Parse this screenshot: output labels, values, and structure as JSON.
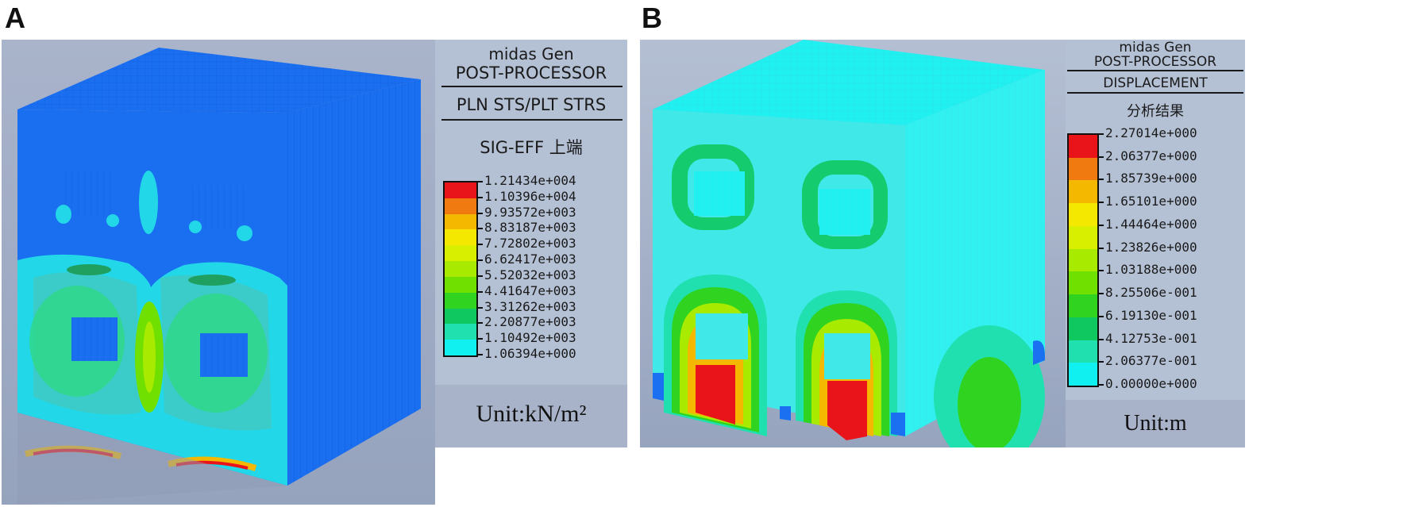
{
  "panels": [
    {
      "letter": "A",
      "legend": {
        "software": "midas Gen",
        "module": "POST-PROCESSOR",
        "result_type": "PLN STS/PLT STRS",
        "component": "SIG-EFF 上端",
        "values": [
          "1.21434e+004",
          "1.10396e+004",
          "9.93572e+003",
          "8.83187e+003",
          "7.72802e+003",
          "6.62417e+003",
          "5.52032e+003",
          "4.41647e+003",
          "3.31262e+003",
          "2.20877e+003",
          "1.10492e+003",
          "1.06394e+000"
        ],
        "colors": [
          "#e8141a",
          "#f07a10",
          "#f4b800",
          "#f4e800",
          "#d8f000",
          "#a8ea00",
          "#70e000",
          "#30d420",
          "#10c860",
          "#20e0b0",
          "#10f0f0",
          "#1a70f0"
        ],
        "unit": "Unit:kN/m²"
      }
    },
    {
      "letter": "B",
      "legend": {
        "software": "midas Gen",
        "module": "POST-PROCESSOR",
        "result_type": "DISPLACEMENT",
        "component": "分析结果",
        "values": [
          "2.27014e+000",
          "2.06377e+000",
          "1.85739e+000",
          "1.65101e+000",
          "1.44464e+000",
          "1.23826e+000",
          "1.03188e+000",
          "8.25506e-001",
          "6.19130e-001",
          "4.12753e-001",
          "2.06377e-001",
          "0.00000e+000"
        ],
        "colors": [
          "#e8141a",
          "#f07a10",
          "#f4b800",
          "#f4e800",
          "#d8f000",
          "#a8ea00",
          "#70e000",
          "#30d420",
          "#10c860",
          "#20e0b0",
          "#10f0f0",
          "#1a70f0"
        ],
        "unit": "Unit:m"
      }
    }
  ]
}
